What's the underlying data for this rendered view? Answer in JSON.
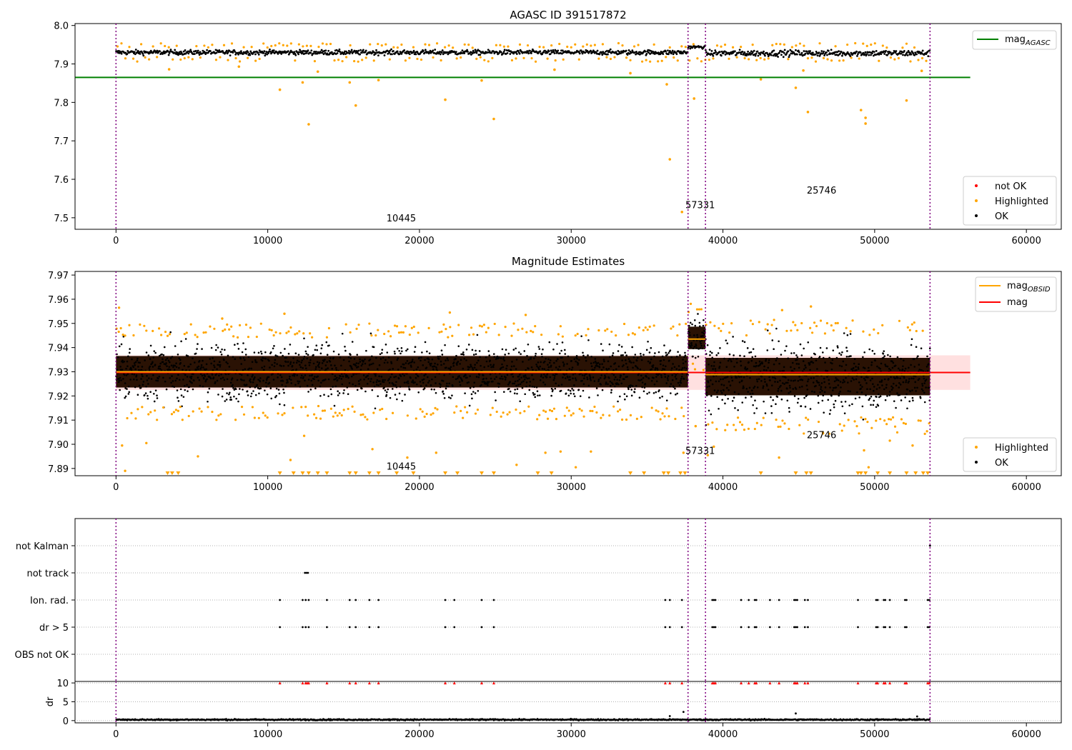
{
  "chart_data": [
    {
      "id": "agasc",
      "type": "scatter",
      "title": "AGASC ID 391517872",
      "xlim": [
        -2700,
        62300
      ],
      "ylim": [
        7.47,
        8.005
      ],
      "yticks": [
        7.5,
        7.6,
        7.7,
        7.8,
        7.9,
        8.0
      ],
      "xticks": [
        0,
        10000,
        20000,
        30000,
        40000,
        50000,
        60000
      ],
      "grid": false,
      "vlines": [
        0,
        37700,
        38850,
        53650
      ],
      "obsid_labels": [
        {
          "text": "10445",
          "x": 18800,
          "y": 7.49
        },
        {
          "text": "57331",
          "x": 38500,
          "y": 7.525
        },
        {
          "text": "25746",
          "x": 46500,
          "y": 7.563
        }
      ],
      "reference_lines": [
        {
          "name": "mag",
          "subscript": "AGASC",
          "color": "#008000",
          "y": 7.865,
          "x_range": [
            0,
            56300
          ]
        }
      ],
      "segments": [
        {
          "x_range": [
            0,
            37700
          ],
          "center": 7.93,
          "spread": 0.008,
          "color": "#000000"
        },
        {
          "x_range": [
            37700,
            38850
          ],
          "center": 7.944,
          "spread": 0.005,
          "color": "#000000"
        },
        {
          "x_range": [
            38850,
            53650
          ],
          "center": 7.928,
          "spread": 0.01,
          "color": "#000000"
        }
      ],
      "highlighted_points": [
        {
          "x": 10800,
          "y": 7.833
        },
        {
          "x": 12300,
          "y": 7.852
        },
        {
          "x": 12700,
          "y": 7.743
        },
        {
          "x": 15400,
          "y": 7.852
        },
        {
          "x": 15800,
          "y": 7.792
        },
        {
          "x": 17300,
          "y": 7.858
        },
        {
          "x": 21700,
          "y": 7.807
        },
        {
          "x": 24100,
          "y": 7.857
        },
        {
          "x": 24900,
          "y": 7.757
        },
        {
          "x": 36300,
          "y": 7.847
        },
        {
          "x": 36500,
          "y": 7.652
        },
        {
          "x": 37300,
          "y": 7.515
        },
        {
          "x": 38100,
          "y": 7.81
        },
        {
          "x": 42500,
          "y": 7.86
        },
        {
          "x": 44800,
          "y": 7.838
        },
        {
          "x": 45600,
          "y": 7.775
        },
        {
          "x": 49100,
          "y": 7.78
        },
        {
          "x": 49400,
          "y": 7.76
        },
        {
          "x": 49400,
          "y": 7.745
        },
        {
          "x": 52100,
          "y": 7.805
        },
        {
          "x": 3500,
          "y": 7.886
        },
        {
          "x": 8100,
          "y": 7.893
        },
        {
          "x": 13300,
          "y": 7.88
        },
        {
          "x": 28900,
          "y": 7.885
        },
        {
          "x": 33900,
          "y": 7.876
        },
        {
          "x": 45300,
          "y": 7.883
        },
        {
          "x": 53100,
          "y": 7.882
        }
      ],
      "legends": [
        {
          "position": "upper-right",
          "entries": [
            {
              "label": "mag",
              "subscript": "AGASC",
              "color": "#008000",
              "kind": "line"
            }
          ]
        },
        {
          "position": "lower-right",
          "entries": [
            {
              "label": "not OK",
              "color": "#ff0000",
              "kind": "dot"
            },
            {
              "label": "Highlighted",
              "color": "#ffa500",
              "kind": "dot"
            },
            {
              "label": "OK",
              "color": "#000000",
              "kind": "dot"
            }
          ]
        }
      ]
    },
    {
      "id": "estimates",
      "type": "scatter",
      "title": "Magnitude Estimates",
      "xlim": [
        -2700,
        62300
      ],
      "ylim": [
        7.887,
        7.9715
      ],
      "yticks": [
        7.89,
        7.9,
        7.91,
        7.92,
        7.93,
        7.94,
        7.95,
        7.96,
        7.97
      ],
      "ytick_labels": [
        "7.89",
        "7.90",
        "7.91",
        "7.92",
        "7.93",
        "7.94",
        "7.95",
        "7.96",
        "7.97"
      ],
      "xticks": [
        0,
        10000,
        20000,
        30000,
        40000,
        50000,
        60000
      ],
      "grid": false,
      "vlines": [
        0,
        37700,
        38850,
        53650
      ],
      "obsid_labels": [
        {
          "text": "10445",
          "x": 18800,
          "y": 7.8895
        },
        {
          "text": "57331",
          "x": 38500,
          "y": 7.896
        },
        {
          "text": "25746",
          "x": 46500,
          "y": 7.9025
        }
      ],
      "mag": {
        "value": 7.9297,
        "band": [
          7.9225,
          7.9368
        ],
        "x_range": [
          0,
          56300
        ],
        "color": "#ff0000"
      },
      "segments": [
        {
          "x_range": [
            0,
            37700
          ],
          "center": 7.93,
          "spread": 0.0105,
          "obsid_mag": 7.93
        },
        {
          "x_range": [
            37700,
            38850
          ],
          "center": 7.944,
          "spread": 0.0075,
          "obsid_mag": 7.9435
        },
        {
          "x_range": [
            38850,
            53650
          ],
          "center": 7.928,
          "spread": 0.0125,
          "obsid_mag": 7.9288
        }
      ],
      "highlighted_points": [
        {
          "x": 200,
          "y": 7.9565
        },
        {
          "x": 400,
          "y": 7.8995
        },
        {
          "x": 600,
          "y": 7.889
        },
        {
          "x": 2000,
          "y": 7.9005
        },
        {
          "x": 5400,
          "y": 7.895
        },
        {
          "x": 11500,
          "y": 7.8935
        },
        {
          "x": 12400,
          "y": 7.9035
        },
        {
          "x": 16900,
          "y": 7.898
        },
        {
          "x": 19200,
          "y": 7.8945
        },
        {
          "x": 21100,
          "y": 7.8965
        },
        {
          "x": 26400,
          "y": 7.8915
        },
        {
          "x": 28300,
          "y": 7.8965
        },
        {
          "x": 29300,
          "y": 7.897
        },
        {
          "x": 30300,
          "y": 7.8905
        },
        {
          "x": 31300,
          "y": 7.897
        },
        {
          "x": 37400,
          "y": 7.8965
        },
        {
          "x": 38200,
          "y": 7.9075
        },
        {
          "x": 39000,
          "y": 7.8955
        },
        {
          "x": 39400,
          "y": 7.899
        },
        {
          "x": 43700,
          "y": 7.8945
        },
        {
          "x": 46600,
          "y": 7.9045
        },
        {
          "x": 49600,
          "y": 7.8905
        },
        {
          "x": 49300,
          "y": 7.8975
        },
        {
          "x": 51000,
          "y": 7.9015
        },
        {
          "x": 52500,
          "y": 7.8995
        },
        {
          "x": 45800,
          "y": 7.957
        },
        {
          "x": 43900,
          "y": 7.9555
        },
        {
          "x": 11100,
          "y": 7.954
        },
        {
          "x": 7000,
          "y": 7.952
        },
        {
          "x": 22000,
          "y": 7.9545
        },
        {
          "x": 27000,
          "y": 7.9535
        }
      ],
      "clipped_markers_x": [
        3400,
        3700,
        4100,
        10800,
        11700,
        12300,
        12700,
        13300,
        13900,
        15400,
        15800,
        16700,
        17300,
        18500,
        19600,
        21700,
        22500,
        24100,
        24900,
        27800,
        28700,
        33900,
        34800,
        36100,
        36400,
        37200,
        37500,
        42500,
        44800,
        45500,
        45800,
        48900,
        49100,
        49400,
        50200,
        51000,
        52100,
        52700,
        53200,
        53500
      ],
      "legends": [
        {
          "position": "upper-right",
          "entries": [
            {
              "label": "mag",
              "subscript": "OBSID",
              "color": "#ffa500",
              "kind": "line"
            },
            {
              "label": "mag",
              "subscript": "",
              "color": "#ff0000",
              "kind": "line"
            }
          ]
        },
        {
          "position": "lower-right",
          "entries": [
            {
              "label": "Highlighted",
              "color": "#ffa500",
              "kind": "dot"
            },
            {
              "label": "OK",
              "color": "#000000",
              "kind": "dot"
            }
          ]
        }
      ]
    },
    {
      "id": "flags",
      "type": "scatter",
      "xlim": [
        -2700,
        62300
      ],
      "xticks": [
        0,
        10000,
        20000,
        30000,
        40000,
        50000,
        60000
      ],
      "vlines": [
        0,
        37700,
        38850,
        53650
      ],
      "categories": [
        "not Kalman",
        "not track",
        "Ion. rad.",
        "dr > 5",
        "OBS not OK"
      ],
      "flagged_points": {
        "not Kalman": [
          53650
        ],
        "not track": [
          12450,
          12550,
          12650
        ],
        "Ion. rad.": [
          10800,
          12300,
          12500,
          12700,
          13900,
          15400,
          15800,
          16700,
          17300,
          21700,
          22300,
          24100,
          24900,
          36200,
          36500,
          37300,
          39300,
          39400,
          39500,
          41200,
          41700,
          42100,
          42200,
          43100,
          43700,
          44700,
          44800,
          44900,
          45400,
          45600,
          48900,
          50100,
          50200,
          50600,
          50700,
          51000,
          52000,
          52100,
          53500,
          53600
        ],
        "dr > 5": [
          10800,
          12300,
          12500,
          12700,
          13900,
          15400,
          15800,
          16700,
          17300,
          21700,
          22300,
          24100,
          24900,
          36200,
          36500,
          37300,
          39300,
          39400,
          39500,
          41200,
          41700,
          42100,
          42200,
          43100,
          43700,
          44700,
          44800,
          44900,
          45400,
          45600,
          48900,
          50100,
          50200,
          50600,
          50700,
          51000,
          52000,
          52100,
          53500,
          53600
        ],
        "OBS not OK": []
      }
    },
    {
      "id": "dr",
      "type": "scatter",
      "ylabel": "dr",
      "xlim": [
        -2700,
        62300
      ],
      "ylim": [
        -0.6,
        10.4
      ],
      "yticks": [
        0,
        5,
        10
      ],
      "xticks": [
        0,
        10000,
        20000,
        30000,
        40000,
        50000,
        60000
      ],
      "vlines": [
        0,
        37700,
        38850,
        53650
      ],
      "baseline": {
        "x_range": [
          0,
          53650
        ],
        "center": 0.25,
        "spread": 0.25
      },
      "clipped_points_x": [
        10800,
        12300,
        12500,
        12600,
        12700,
        13900,
        15400,
        15800,
        16700,
        17300,
        21700,
        22300,
        24100,
        24900,
        36200,
        36500,
        37300,
        39300,
        39400,
        39500,
        41200,
        41700,
        42100,
        42200,
        43100,
        43700,
        44700,
        44800,
        44900,
        45400,
        45600,
        48900,
        50100,
        50200,
        50600,
        50700,
        51000,
        52000,
        52100,
        53500,
        53600
      ],
      "outlier_points": [
        {
          "x": 36500,
          "y": 1.2
        },
        {
          "x": 37400,
          "y": 2.3
        },
        {
          "x": 44800,
          "y": 1.9
        },
        {
          "x": 52800,
          "y": 1.1
        }
      ]
    }
  ]
}
